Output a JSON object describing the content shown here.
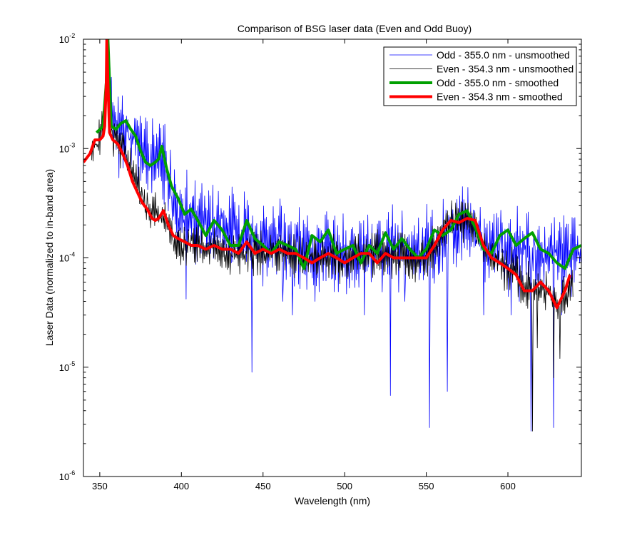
{
  "chart_data": {
    "type": "line",
    "title": "Comparison of BSG laser data (Even and Odd Buoy)",
    "xlabel": "Wavelength (nm)",
    "ylabel": "Laser Data (normalized to in-band area)",
    "xlim": [
      340,
      645
    ],
    "ylim": [
      1e-06,
      0.01
    ],
    "yscale": "log",
    "x_ticks": [
      350,
      400,
      450,
      500,
      550,
      600
    ],
    "y_ticks": [
      {
        "value": 1e-06,
        "base": "10",
        "exp": "-6"
      },
      {
        "value": 1e-05,
        "base": "10",
        "exp": "-5"
      },
      {
        "value": 0.0001,
        "base": "10",
        "exp": "-4"
      },
      {
        "value": 0.001,
        "base": "10",
        "exp": "-3"
      },
      {
        "value": 0.01,
        "base": "10",
        "exp": "-2"
      }
    ],
    "grid": false,
    "legend_position": "top-right",
    "series": [
      {
        "name": "Odd - 355.0 nm - unsmoothed",
        "color": "#0000ff",
        "width": 0.8,
        "trend_x": [
          355,
          358,
          362,
          366,
          370,
          375,
          380,
          385,
          388,
          392,
          396,
          400,
          410,
          420,
          430,
          440,
          450,
          460,
          470,
          480,
          490,
          500,
          510,
          520,
          530,
          540,
          550,
          555,
          560,
          565,
          570,
          575,
          580,
          585,
          590,
          600,
          605,
          610,
          615,
          620,
          625,
          630,
          635,
          640,
          645
        ],
        "trend_y": [
          0.01,
          0.0016,
          0.0014,
          0.00135,
          0.0012,
          0.001,
          0.00085,
          0.0008,
          0.00085,
          0.0005,
          0.00035,
          0.00025,
          0.00022,
          0.0002,
          0.00018,
          0.00016,
          0.00013,
          0.00013,
          0.00012,
          0.00011,
          0.00012,
          0.00011,
          0.00011,
          0.00012,
          0.000125,
          0.00013,
          0.00012,
          0.00011,
          0.00016,
          0.00019,
          0.00021,
          0.0002,
          0.00017,
          0.00014,
          0.00013,
          0.00012,
          0.00012,
          0.000115,
          0.00011,
          0.000105,
          0.0001,
          0.0001,
          0.00011,
          0.00011,
          0.000115
        ],
        "dips": [
          [
            403,
            4.2e-05
          ],
          [
            443,
            9e-06
          ],
          [
            462,
            4e-05
          ],
          [
            468,
            3e-05
          ],
          [
            482,
            4e-05
          ],
          [
            512,
            3e-05
          ],
          [
            528,
            5.5e-06
          ],
          [
            537,
            4e-05
          ],
          [
            552,
            2.8e-06
          ],
          [
            563,
            6e-06
          ],
          [
            585,
            3e-05
          ],
          [
            602,
            3e-05
          ],
          [
            607,
            4e-05
          ],
          [
            614,
            2.6e-06
          ],
          [
            628,
            2.8e-06
          ],
          [
            633,
            3e-05
          ]
        ],
        "noise": 0.55,
        "seed": 11
      },
      {
        "name": "Even - 354.3 nm - unsmoothed",
        "color": "#000000",
        "width": 0.8,
        "trend_x": [
          345,
          350,
          353,
          354.3,
          356,
          358,
          362,
          366,
          370,
          375,
          380,
          385,
          390,
          393,
          396,
          400,
          420,
          440,
          460,
          480,
          500,
          520,
          540,
          550,
          560,
          565,
          570,
          575,
          580,
          585,
          590,
          600,
          610,
          615,
          620,
          625,
          630,
          635,
          640
        ],
        "trend_y": [
          0.0009,
          0.0012,
          0.002,
          0.01,
          0.002,
          0.0013,
          0.0011,
          0.0009,
          0.0006,
          0.0004,
          0.0003,
          0.00025,
          0.00024,
          0.00018,
          0.00014,
          0.00013,
          0.00012,
          0.00011,
          0.00011,
          0.0001,
          0.0001,
          0.00011,
          0.0001,
          0.0001,
          0.00017,
          0.00021,
          0.00023,
          0.00022,
          0.00018,
          0.00012,
          0.0001,
          8e-05,
          6e-05,
          5e-05,
          5e-05,
          5e-05,
          4e-05,
          5e-05,
          6e-05
        ],
        "dips": [
          [
            615,
            2.6e-06
          ],
          [
            628,
            8e-06
          ],
          [
            632,
            1.2e-05
          ],
          [
            618,
            1.5e-05
          ]
        ],
        "noise": 0.3,
        "seed": 23
      },
      {
        "name": "Odd - 355.0 nm - smoothed",
        "color": "#00a000",
        "width": 4,
        "x": [
          348,
          352,
          354,
          355,
          356,
          357,
          360,
          363,
          366,
          369,
          372,
          375,
          378,
          381,
          384,
          386,
          388,
          391,
          394,
          398,
          402,
          406,
          410,
          415,
          420,
          425,
          430,
          435,
          440,
          445,
          450,
          455,
          460,
          465,
          470,
          475,
          480,
          485,
          490,
          495,
          500,
          505,
          510,
          515,
          520,
          525,
          530,
          535,
          540,
          545,
          550,
          555,
          560,
          565,
          570,
          575,
          580,
          585,
          590,
          595,
          600,
          605,
          610,
          615,
          620,
          625,
          630,
          635,
          640,
          645
        ],
        "y": [
          0.0014,
          0.0016,
          0.004,
          0.01,
          0.004,
          0.0016,
          0.0015,
          0.0017,
          0.0018,
          0.0015,
          0.0013,
          0.00095,
          0.00075,
          0.0007,
          0.00075,
          0.0008,
          0.00105,
          0.00065,
          0.00045,
          0.00035,
          0.00025,
          0.00028,
          0.00022,
          0.00016,
          0.00022,
          0.00018,
          0.00013,
          0.00013,
          0.00022,
          0.00015,
          0.00013,
          0.00011,
          0.00014,
          0.00013,
          0.00012,
          8e-05,
          0.00016,
          0.00014,
          0.00018,
          0.00011,
          0.00012,
          0.00013,
          9e-05,
          0.00013,
          0.00011,
          0.00017,
          0.00012,
          0.00015,
          0.00012,
          0.0001,
          0.00012,
          0.00018,
          0.00016,
          0.00018,
          0.00025,
          0.00027,
          0.00019,
          0.00012,
          0.00011,
          0.00016,
          0.00018,
          0.00013,
          0.00015,
          0.00017,
          0.00012,
          0.00011,
          9e-05,
          8e-05,
          0.00012,
          0.00013
        ]
      },
      {
        "name": "Even - 354.3 nm - smoothed",
        "color": "#ff0000",
        "width": 4,
        "x": [
          340,
          344,
          347,
          350,
          352,
          353,
          354,
          354.3,
          355,
          356,
          358,
          361,
          364,
          367,
          370,
          373,
          376,
          379,
          382,
          384,
          386,
          389,
          392,
          395,
          398,
          402,
          406,
          410,
          415,
          420,
          425,
          430,
          435,
          440,
          445,
          450,
          455,
          460,
          465,
          470,
          475,
          480,
          485,
          490,
          495,
          500,
          505,
          510,
          515,
          520,
          525,
          530,
          535,
          540,
          545,
          550,
          555,
          560,
          565,
          570,
          575,
          580,
          585,
          590,
          595,
          600,
          605,
          610,
          615,
          620,
          625,
          630,
          635,
          638
        ],
        "y": [
          0.00075,
          0.0009,
          0.0012,
          0.0012,
          0.0013,
          0.0016,
          0.004,
          0.01,
          0.004,
          0.0014,
          0.0012,
          0.0011,
          0.0009,
          0.0007,
          0.0005,
          0.0004,
          0.00032,
          0.00028,
          0.00023,
          0.00022,
          0.00023,
          0.00027,
          0.0002,
          0.00016,
          0.00015,
          0.00014,
          0.00013,
          0.00013,
          0.00012,
          0.00013,
          0.00012,
          0.00012,
          0.00011,
          0.00014,
          0.00011,
          0.00012,
          0.00011,
          0.00012,
          0.00011,
          0.00011,
          0.0001,
          9e-05,
          0.0001,
          0.00011,
          0.0001,
          9e-05,
          0.0001,
          0.00011,
          0.00011,
          9e-05,
          0.00011,
          0.0001,
          0.0001,
          0.0001,
          0.0001,
          0.0001,
          0.00013,
          0.00018,
          0.00022,
          0.00021,
          0.00023,
          0.00022,
          0.00013,
          0.0001,
          9e-05,
          8e-05,
          7e-05,
          5e-05,
          5e-05,
          6e-05,
          5e-05,
          3.5e-05,
          5e-05,
          7e-05
        ]
      }
    ]
  }
}
